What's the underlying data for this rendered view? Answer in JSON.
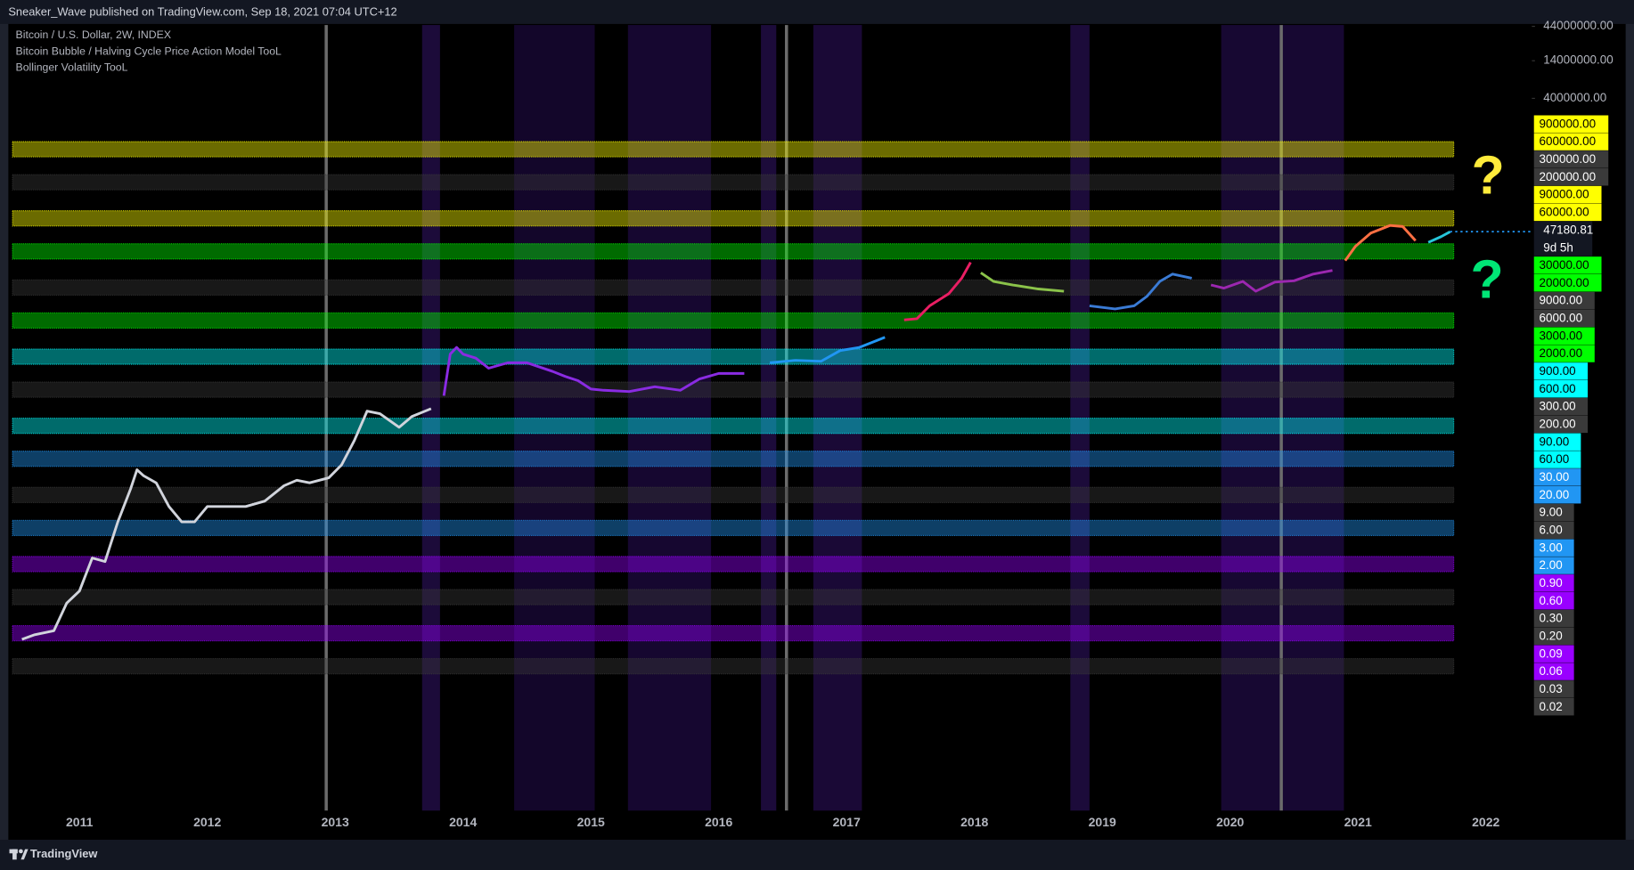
{
  "header": {
    "publisher": "Sneaker_Wave published on TradingView.com, Sep 18, 2021 07:04 UTC+12"
  },
  "legend": [
    "Bitcoin / U.S. Dollar, 2W, INDEX",
    "Bitcoin Bubble / Halving Cycle Price Action Model TooL",
    "Bollinger Volatility TooL"
  ],
  "chart_data": {
    "type": "line",
    "log_scale": true,
    "xlim": [
      2010.46,
      2022.36
    ],
    "xticks": [
      2011,
      2012,
      2013,
      2014,
      2015,
      2016,
      2017,
      2018,
      2019,
      2020,
      2021,
      2022
    ],
    "ylim": [
      0.0002,
      46000000
    ],
    "yticks": [
      {
        "value": 44000000,
        "label": "44000000.00"
      },
      {
        "value": 14000000,
        "label": "14000000.00"
      },
      {
        "value": 4000000,
        "label": "4000000.00"
      }
    ],
    "shaded_ranges": [
      {
        "from": 2013.68,
        "to": 2013.82,
        "color": "#1c0b3a"
      },
      {
        "from": 2014.4,
        "to": 2015.03,
        "color": "#13062a"
      },
      {
        "from": 2015.29,
        "to": 2015.94,
        "color": "#160730"
      },
      {
        "from": 2016.33,
        "to": 2016.45,
        "color": "#1c0b3a"
      },
      {
        "from": 2016.74,
        "to": 2017.12,
        "color": "#1a0936"
      },
      {
        "from": 2018.75,
        "to": 2018.9,
        "color": "#1c0b3a"
      },
      {
        "from": 2019.93,
        "to": 2020.89,
        "color": "#170832"
      }
    ],
    "halvings": [
      2012.93,
      2016.53,
      2020.4
    ],
    "halving_color": "#6b6b6b",
    "series": [
      {
        "color": "#d1d4dc",
        "x": [
          2010.55,
          2010.65,
          2010.8,
          2010.9,
          2011.0,
          2011.1,
          2011.2,
          2011.3,
          2011.4,
          2011.45,
          2011.5,
          2011.6,
          2011.7,
          2011.8,
          2011.9,
          2012.0,
          2012.1,
          2012.2,
          2012.3,
          2012.45,
          2012.6,
          2012.7,
          2012.8,
          2012.95,
          2013.05,
          2013.15,
          2013.25,
          2013.35,
          2013.5,
          2013.6,
          2013.75
        ],
        "values": [
          0.06,
          0.07,
          0.08,
          0.2,
          0.3,
          0.9,
          0.8,
          3,
          9,
          17,
          14,
          11,
          5,
          3,
          3,
          5,
          5,
          5,
          5,
          6,
          10,
          12,
          11,
          13,
          20,
          45,
          120,
          110,
          70,
          100,
          130
        ]
      },
      {
        "color": "#8a2be2",
        "x": [
          2013.85,
          2013.9,
          2013.95,
          2014.0,
          2014.1,
          2014.2,
          2014.35,
          2014.5,
          2014.7,
          2014.8,
          2014.9,
          2015.0,
          2015.1,
          2015.3,
          2015.5,
          2015.7,
          2015.85,
          2016.0,
          2016.2
        ],
        "values": [
          200,
          800,
          1000,
          800,
          700,
          500,
          600,
          600,
          450,
          380,
          330,
          250,
          240,
          230,
          270,
          240,
          350,
          420,
          420
        ]
      },
      {
        "color": "#2196f3",
        "x": [
          2016.4,
          2016.6,
          2016.8,
          2016.95,
          2017.1,
          2017.3
        ],
        "values": [
          600,
          650,
          630,
          900,
          1000,
          1400
        ]
      },
      {
        "color": "#e91e63",
        "x": [
          2017.45,
          2017.55,
          2017.65,
          2017.8,
          2017.9,
          2017.97
        ],
        "values": [
          2500,
          2600,
          4000,
          6000,
          10000,
          17000
        ]
      },
      {
        "color": "#8bc34a",
        "x": [
          2018.05,
          2018.15,
          2018.3,
          2018.5,
          2018.7
        ],
        "values": [
          12000,
          9000,
          8000,
          7000,
          6500
        ]
      },
      {
        "color": "#3a7bd5",
        "x": [
          2018.9,
          2019.1,
          2019.25,
          2019.35,
          2019.45,
          2019.55,
          2019.7
        ],
        "values": [
          4000,
          3600,
          4000,
          5500,
          9000,
          11500,
          10000
        ]
      },
      {
        "color": "#9c27b0",
        "x": [
          2019.85,
          2019.95,
          2020.1,
          2020.2,
          2020.35,
          2020.5,
          2020.65,
          2020.8
        ],
        "values": [
          8000,
          7200,
          9000,
          6500,
          8800,
          9200,
          11500,
          13000
        ]
      },
      {
        "color": "#ff7043",
        "x": [
          2020.9,
          2020.98,
          2021.1,
          2021.25,
          2021.35,
          2021.45
        ],
        "values": [
          18000,
          29000,
          45000,
          58000,
          56000,
          35000
        ]
      },
      {
        "color": "#26c6da",
        "x": [
          2021.55,
          2021.65,
          2021.72
        ],
        "values": [
          33000,
          40000,
          47000
        ]
      }
    ],
    "price_levels": [
      {
        "high": {
          "value": 900000,
          "label": "900000.00"
        },
        "low": {
          "value": 600000,
          "label": "600000.00"
        },
        "color": "#ffff00",
        "text_color": "#000000"
      },
      {
        "high": {
          "value": 300000,
          "label": "300000.00"
        },
        "low": {
          "value": 200000,
          "label": "200000.00"
        },
        "color": "#3a3a3a",
        "text_color": "#ffffff"
      },
      {
        "high": {
          "value": 90000,
          "label": "90000.00"
        },
        "low": {
          "value": 60000,
          "label": "60000.00"
        },
        "color": "#ffff00",
        "text_color": "#000000"
      },
      {
        "high": {
          "value": 30000,
          "label": "30000.00"
        },
        "low": {
          "value": 20000,
          "label": "20000.00"
        },
        "color": "#00ff00",
        "text_color": "#000000"
      },
      {
        "high": {
          "value": 9000,
          "label": "9000.00"
        },
        "low": {
          "value": 6000,
          "label": "6000.00"
        },
        "color": "#3a3a3a",
        "text_color": "#ffffff"
      },
      {
        "high": {
          "value": 3000,
          "label": "3000.00"
        },
        "low": {
          "value": 2000,
          "label": "2000.00"
        },
        "color": "#00ff00",
        "text_color": "#000000"
      },
      {
        "high": {
          "value": 900,
          "label": "900.00"
        },
        "low": {
          "value": 600,
          "label": "600.00"
        },
        "color": "#00ffff",
        "text_color": "#000000"
      },
      {
        "high": {
          "value": 300,
          "label": "300.00"
        },
        "low": {
          "value": 200,
          "label": "200.00"
        },
        "color": "#3a3a3a",
        "text_color": "#ffffff"
      },
      {
        "high": {
          "value": 90,
          "label": "90.00"
        },
        "low": {
          "value": 60,
          "label": "60.00"
        },
        "color": "#00ffff",
        "text_color": "#000000"
      },
      {
        "high": {
          "value": 30,
          "label": "30.00"
        },
        "low": {
          "value": 20,
          "label": "20.00"
        },
        "color": "#2196f3",
        "text_color": "#ffffff"
      },
      {
        "high": {
          "value": 9,
          "label": "9.00"
        },
        "low": {
          "value": 6,
          "label": "6.00"
        },
        "color": "#3a3a3a",
        "text_color": "#ffffff"
      },
      {
        "high": {
          "value": 3,
          "label": "3.00"
        },
        "low": {
          "value": 2,
          "label": "2.00"
        },
        "color": "#2196f3",
        "text_color": "#ffffff"
      },
      {
        "high": {
          "value": 0.9,
          "label": "0.90"
        },
        "low": {
          "value": 0.6,
          "label": "0.60"
        },
        "color": "#9900ff",
        "text_color": "#ffffff"
      },
      {
        "high": {
          "value": 0.3,
          "label": "0.30"
        },
        "low": {
          "value": 0.2,
          "label": "0.20"
        },
        "color": "#3a3a3a",
        "text_color": "#ffffff"
      },
      {
        "high": {
          "value": 0.09,
          "label": "0.09"
        },
        "low": {
          "value": 0.06,
          "label": "0.06"
        },
        "color": "#9900ff",
        "text_color": "#ffffff"
      },
      {
        "high": {
          "value": 0.03,
          "label": "0.03"
        },
        "low": {
          "value": 0.02,
          "label": "0.02"
        },
        "color": "#3a3a3a",
        "text_color": "#ffffff"
      }
    ],
    "last_price": 47180.81,
    "last_price_color": "#2196f3",
    "countdown": "9d 5h",
    "annotations": [
      {
        "text": "?",
        "color": "#ffeb3b"
      },
      {
        "text": "?",
        "color": "#00e676"
      }
    ]
  },
  "footer": {
    "brand": "TradingView"
  }
}
